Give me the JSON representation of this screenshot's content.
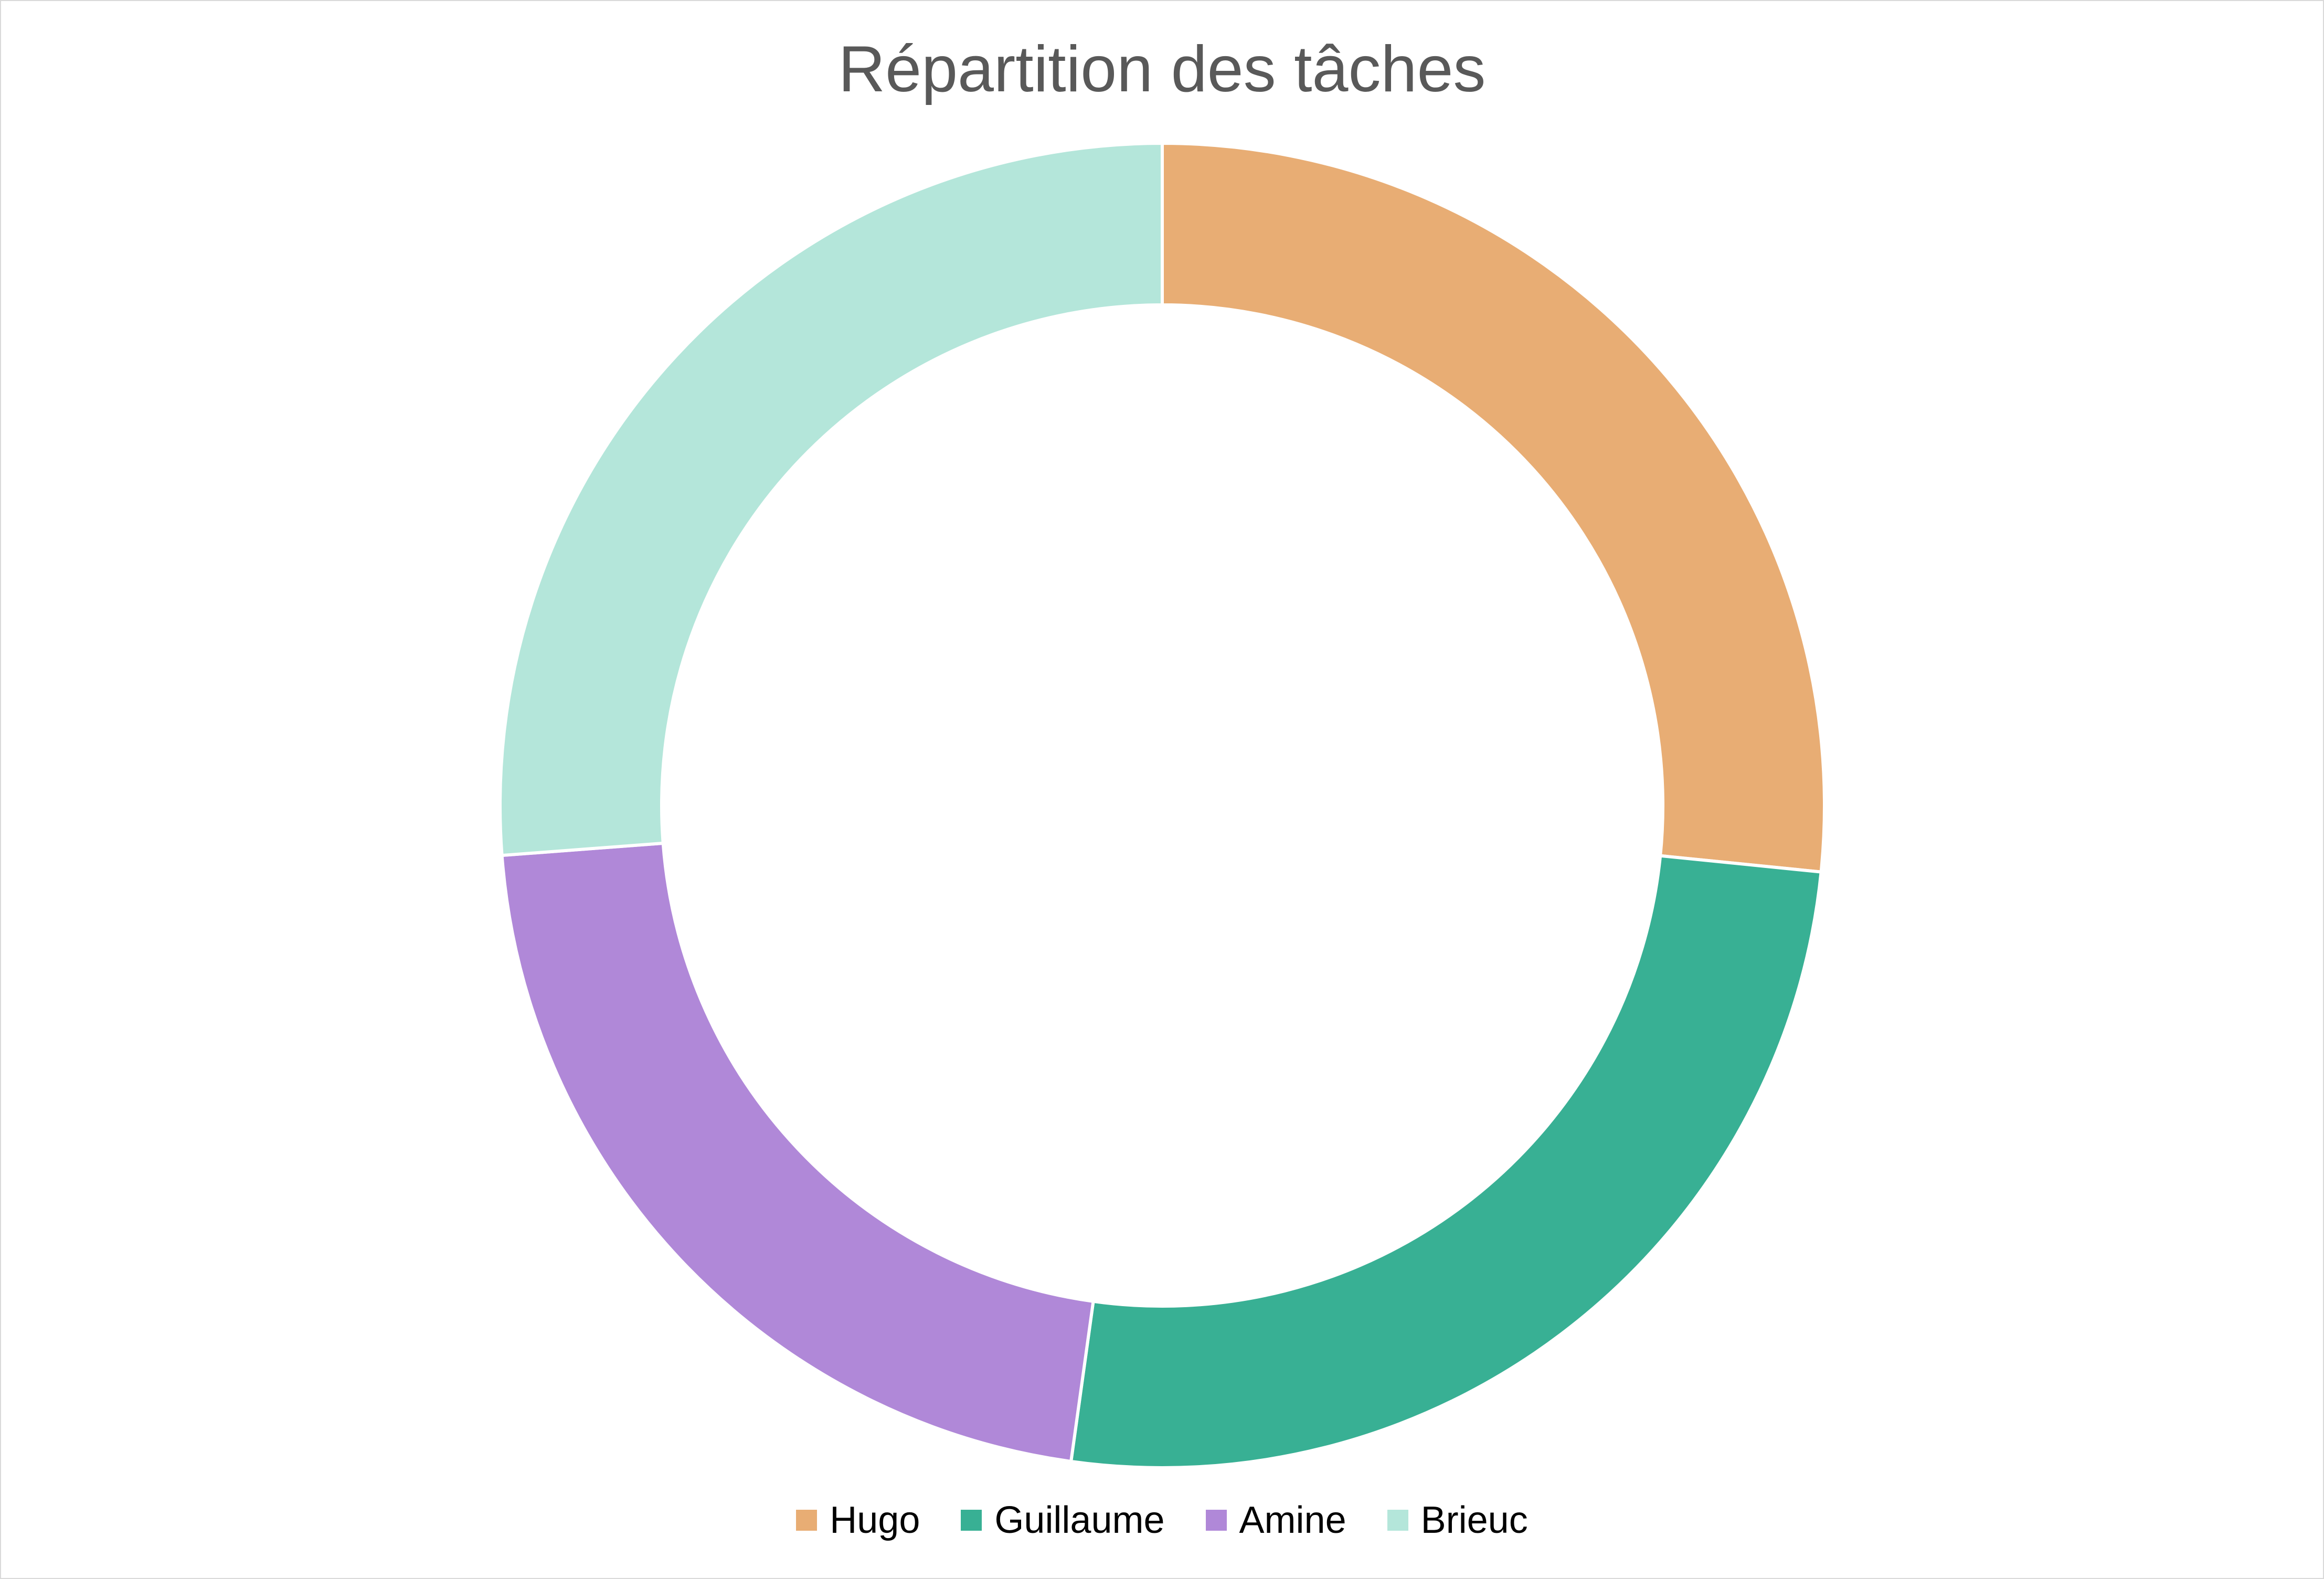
{
  "chart_data": {
    "type": "donut",
    "title": "Répartition des tâches",
    "categories": [
      "Hugo",
      "Guillaume",
      "Amine",
      "Brieuc"
    ],
    "values": [
      26.6,
      25.6,
      21.6,
      26.2
    ],
    "colors": [
      "#E8AD74",
      "#38B094",
      "#B088D8",
      "#B4E6DA"
    ],
    "start_angle_deg": 0,
    "direction": "clockwise",
    "legend_position": "bottom",
    "slice_border_color": "#FFFFFF"
  }
}
